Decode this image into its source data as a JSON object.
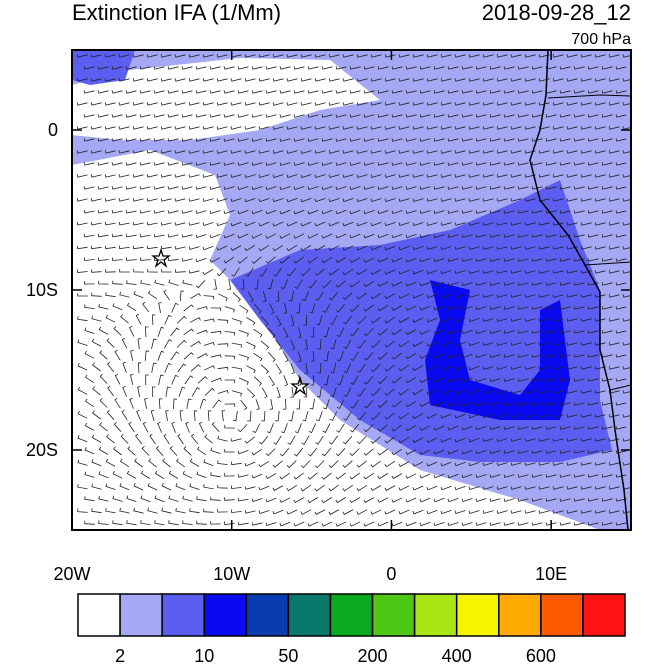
{
  "header": {
    "title": "Extinction IFA (1/Mm)",
    "time": "2018-09-28_12",
    "level": "700 hPa"
  },
  "map": {
    "xlim": [
      -20,
      15
    ],
    "ylim": [
      -25,
      5
    ],
    "xticks": [
      {
        "value": -20,
        "label": "20W"
      },
      {
        "value": -10,
        "label": "10W"
      },
      0,
      {
        "value": 10,
        "label": "10E"
      }
    ],
    "yticks": [
      0,
      {
        "value": -10,
        "label": "10S"
      },
      {
        "value": -20,
        "label": "20S"
      }
    ]
  },
  "colorbar": {
    "colors": [
      "#ffffff",
      "#a5a8f5",
      "#5c5ef2",
      "#0a0af2",
      "#0a3cb0",
      "#0a786a",
      "#0aaa1e",
      "#4ec814",
      "#a8e614",
      "#f5f500",
      "#ffaa00",
      "#ff5a00",
      "#ff1414"
    ],
    "labels": [
      2,
      10,
      50,
      200,
      400,
      600
    ]
  }
}
